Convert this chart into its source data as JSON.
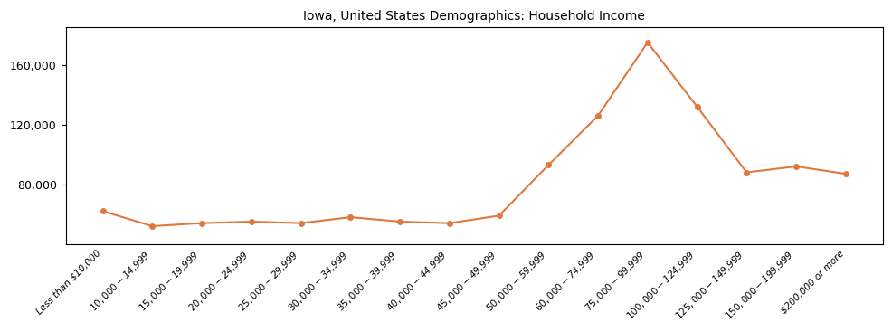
{
  "title": "Iowa, United States Demographics: Household Income",
  "categories": [
    "Less than $10,000",
    "$10,000 - $14,999",
    "$15,000 - $19,999",
    "$20,000 - $24,999",
    "$25,000 - $29,999",
    "$30,000 - $34,999",
    "$35,000 - $39,999",
    "$40,000 - $44,999",
    "$45,000 - $49,999",
    "$50,000 - $59,999",
    "$60,000 - $74,999",
    "$75,000 - $99,999",
    "$100,000 - $124,999",
    "$125,000 - $149,999",
    "$150,000 - $199,999",
    "$200,000 or more"
  ],
  "values": [
    62000,
    52000,
    54000,
    55000,
    54000,
    58000,
    55000,
    54000,
    59000,
    93000,
    126000,
    175000,
    132000,
    88000,
    92000,
    87000
  ],
  "line_color": "#E07840",
  "marker_color": "#E07840",
  "background_color": "#ffffff",
  "title_fontsize": 10,
  "tick_fontsize": 7.5,
  "ytick_fontsize": 9,
  "ylim_min": 40000,
  "ylim_max": 185000,
  "yticks": [
    80000,
    120000,
    160000
  ]
}
